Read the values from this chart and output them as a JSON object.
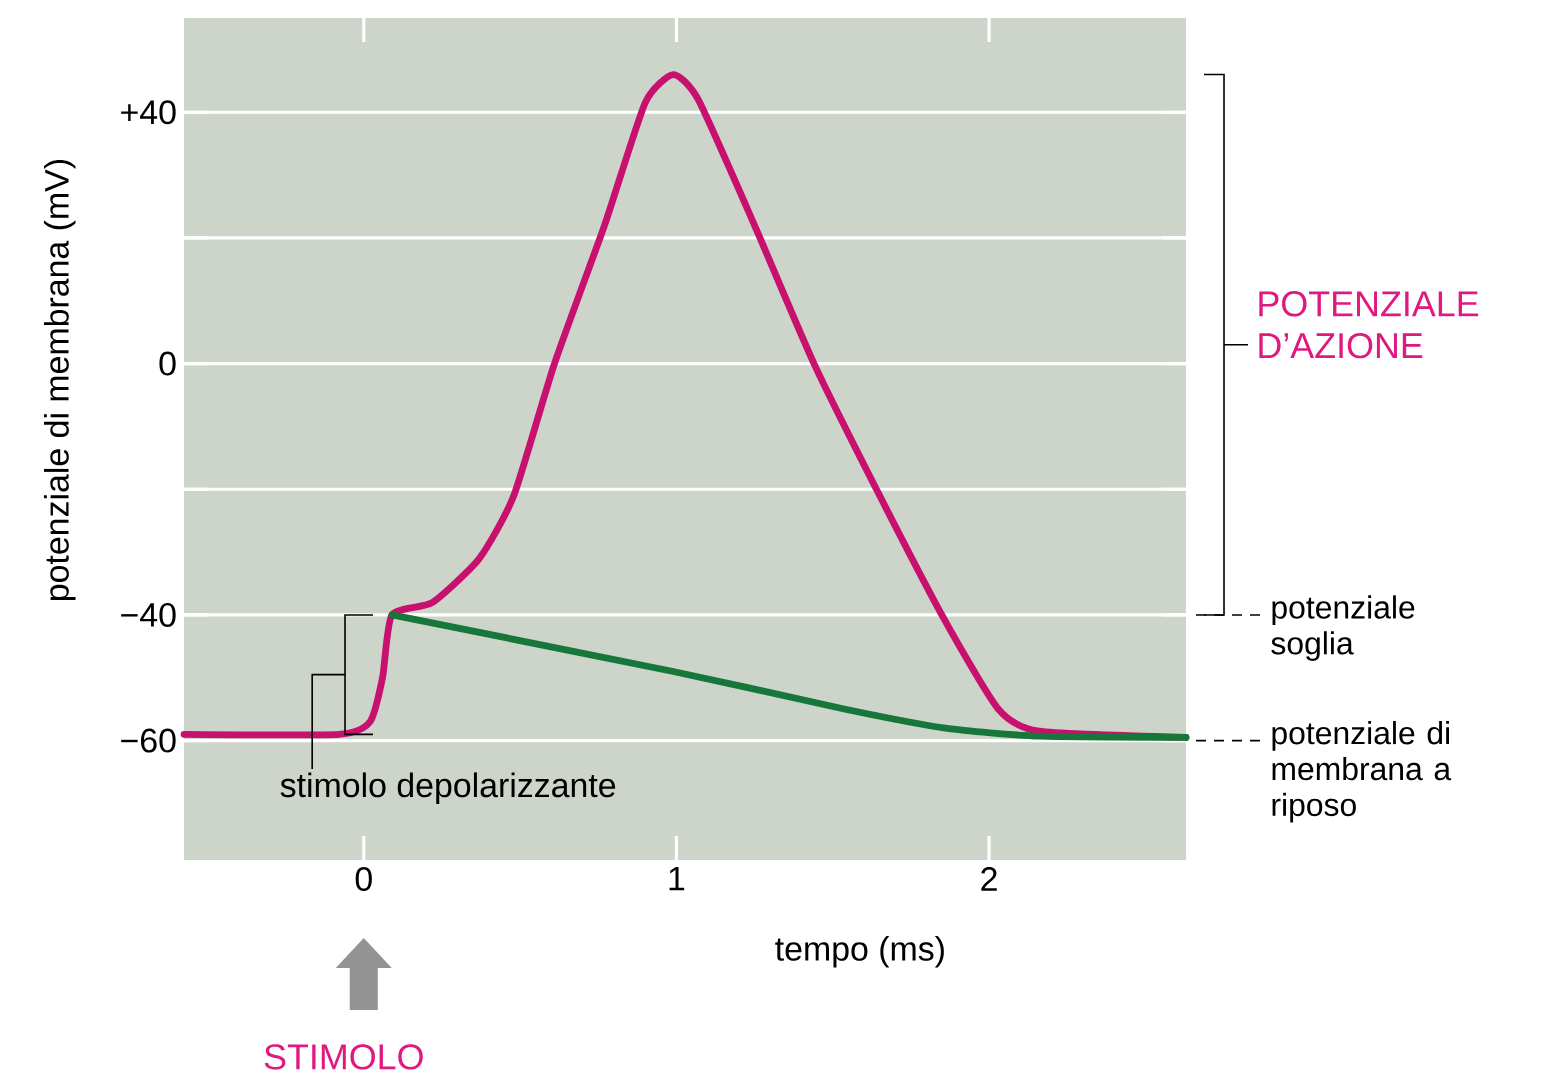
{
  "chart_data": {
    "type": "line",
    "xlabel": "tempo (ms)",
    "ylabel": "potenziale di membrana (mV)",
    "xlim": [
      -0.575,
      2.63
    ],
    "ylim": [
      -79,
      55
    ],
    "xticks": [
      0,
      1,
      2
    ],
    "yticks": [
      {
        "value": -60,
        "label": "−60"
      },
      {
        "value": -40,
        "label": "−40"
      },
      {
        "value": -20,
        "label": null
      },
      0,
      {
        "value": 20,
        "label": null
      },
      {
        "value": 40,
        "label": "+40"
      }
    ],
    "grid": "y",
    "line_style": "solid",
    "series": [
      {
        "color": "#c8106e",
        "x": [
          -0.575,
          -0.08,
          0.02,
          0.06,
          0.09,
          0.22,
          0.37,
          0.48,
          0.61,
          0.77,
          0.9,
          0.99,
          1.07,
          1.25,
          1.44,
          1.65,
          1.86,
          2.03,
          2.16,
          2.63
        ],
        "values": [
          -59,
          -59,
          -57,
          -50,
          -40,
          -38,
          -31,
          -21,
          0,
          22,
          41.5,
          46,
          42,
          22,
          0,
          -21,
          -41,
          -55,
          -58.5,
          -59.5
        ]
      },
      {
        "color": "#17773a",
        "x": [
          0.09,
          0.99,
          1.54,
          1.86,
          2.16,
          2.63
        ],
        "values": [
          -40,
          -49,
          -55,
          -58,
          -59.3,
          -59.5
        ]
      }
    ],
    "annotations": [
      "stimolo depolarizzante",
      "POTENZIALE D’AZIONE",
      "potenziale soglia",
      "potenziale di membrana a riposo",
      "STIMOLO"
    ]
  }
}
